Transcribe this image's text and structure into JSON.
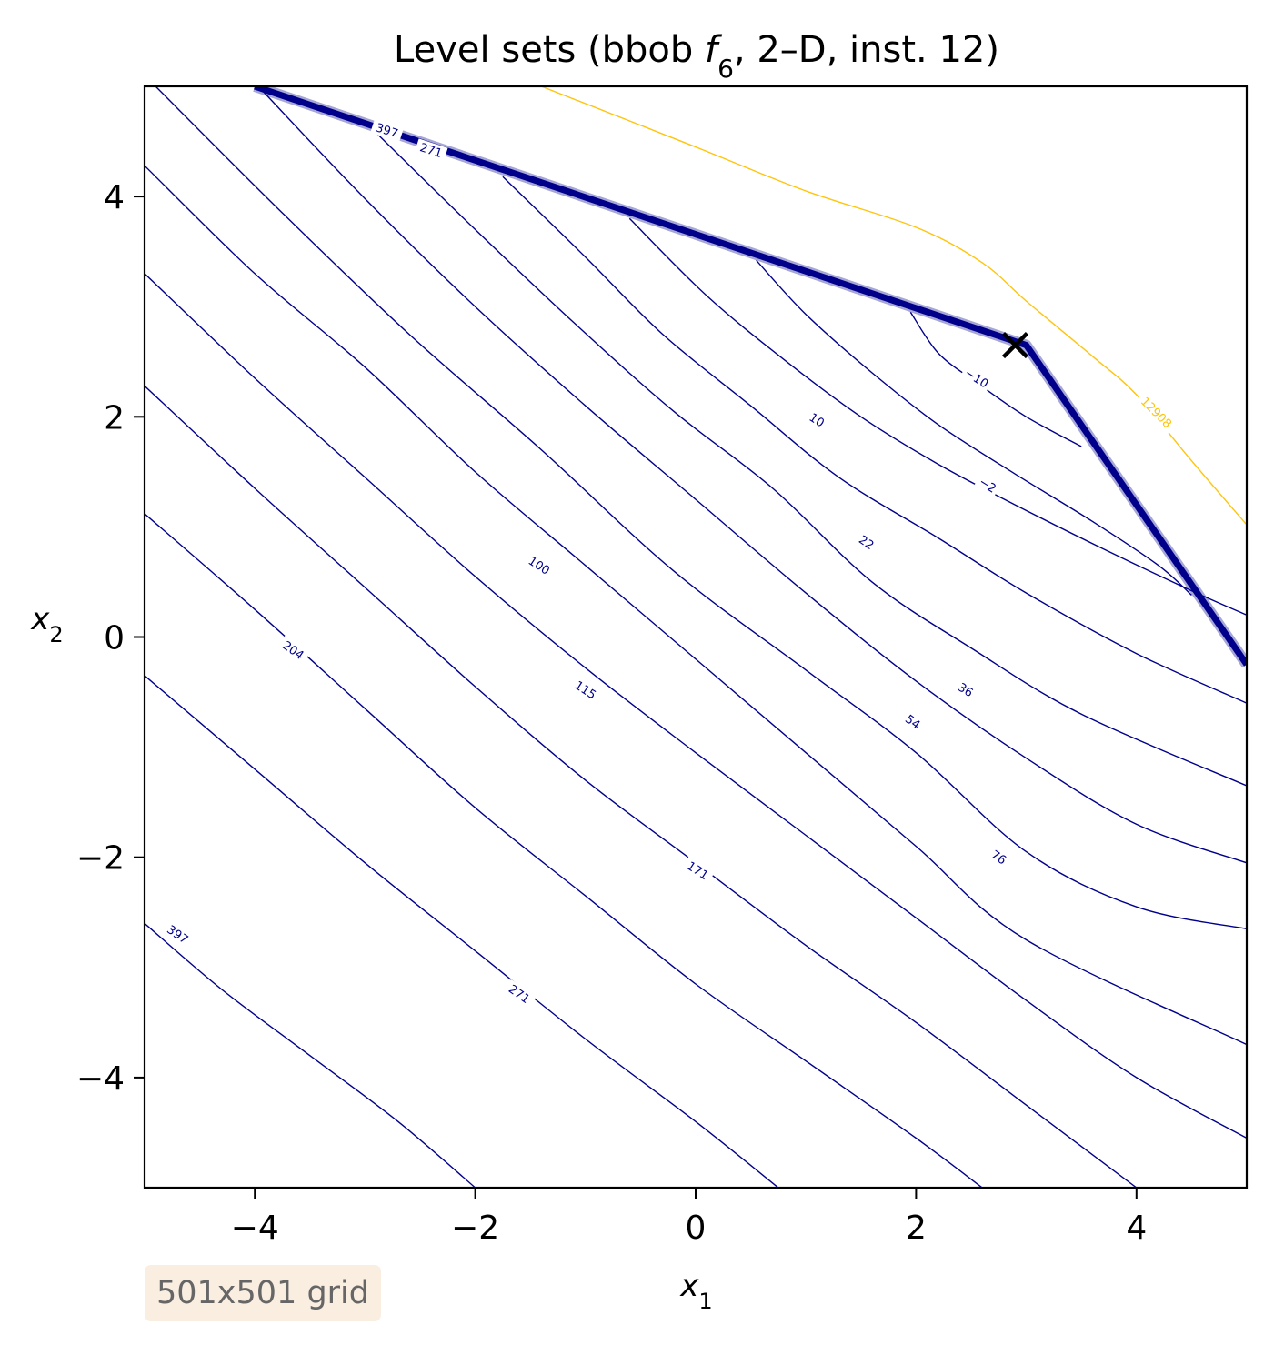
{
  "chart_data": {
    "type": "contour",
    "title": "Level sets (bbob f6, 2–D, inst. 12)",
    "title_parts": {
      "prefix": "Level sets (bbob ",
      "func_letter": "f",
      "func_sub": "6",
      "suffix": ", 2–D, inst. 12)"
    },
    "xlabel": {
      "base": "x",
      "sub": "1"
    },
    "ylabel": {
      "base": "x",
      "sub": "2"
    },
    "xlim": [
      -5,
      5
    ],
    "ylim": [
      -5,
      5
    ],
    "xticks": [
      {
        "value": -4,
        "label": "−4"
      },
      {
        "value": -2,
        "label": "−2"
      },
      {
        "value": 0,
        "label": "0"
      },
      {
        "value": 2,
        "label": "2"
      },
      {
        "value": 4,
        "label": "4"
      }
    ],
    "yticks": [
      {
        "value": -4,
        "label": "−4"
      },
      {
        "value": -2,
        "label": "−2"
      },
      {
        "value": 0,
        "label": "0"
      },
      {
        "value": 2,
        "label": "2"
      },
      {
        "value": 4,
        "label": "4"
      }
    ],
    "grid": false,
    "optimum": {
      "x": 2.9,
      "y": 2.65,
      "marker": "x"
    },
    "ridge_polyline": [
      [
        -4.0,
        5.0
      ],
      [
        3.0,
        2.65
      ],
      [
        5.0,
        -0.25
      ]
    ],
    "contour_levels": [
      -10,
      -2,
      10,
      22,
      36,
      54,
      76,
      100,
      115,
      171,
      204,
      271,
      397,
      12908
    ],
    "level_colors": {
      "low": "#00008b",
      "high": "#ffc40c"
    },
    "contours": [
      {
        "level": -10,
        "label": "−10",
        "label_at": [
          2.55,
          2.35
        ],
        "label_angle": 33,
        "color": "#00008b",
        "points": [
          [
            1.95,
            2.95
          ],
          [
            2.2,
            2.58
          ],
          [
            2.55,
            2.31
          ],
          [
            3.0,
            2.0
          ],
          [
            3.5,
            1.73
          ]
        ]
      },
      {
        "level": 10,
        "label": "10",
        "label_at": [
          1.1,
          1.97
        ],
        "label_angle": 33,
        "color": "#00008b",
        "points": [
          [
            0.55,
            3.42
          ],
          [
            1.0,
            2.93
          ],
          [
            1.6,
            2.4
          ],
          [
            2.2,
            1.93
          ],
          [
            2.9,
            1.48
          ],
          [
            3.6,
            1.05
          ],
          [
            4.2,
            0.65
          ],
          [
            4.5,
            0.38
          ]
        ]
      },
      {
        "level": -2,
        "label": "−2",
        "label_at": [
          2.65,
          1.38
        ],
        "label_angle": 32,
        "color": "#00008b",
        "points": [
          [
            -0.6,
            3.8
          ],
          [
            0.1,
            3.1
          ],
          [
            0.8,
            2.52
          ],
          [
            1.5,
            2.0
          ],
          [
            2.2,
            1.57
          ],
          [
            2.9,
            1.2
          ],
          [
            3.7,
            0.8
          ],
          [
            4.5,
            0.42
          ],
          [
            5.0,
            0.2
          ]
        ]
      },
      {
        "level": 22,
        "label": "22",
        "label_at": [
          1.55,
          0.86
        ],
        "label_angle": 34,
        "color": "#00008b",
        "points": [
          [
            -1.75,
            4.18
          ],
          [
            -1.0,
            3.45
          ],
          [
            -0.3,
            2.75
          ],
          [
            0.5,
            2.1
          ],
          [
            1.3,
            1.45
          ],
          [
            2.2,
            0.9
          ],
          [
            3.0,
            0.4
          ],
          [
            4.0,
            -0.15
          ],
          [
            5.0,
            -0.6
          ]
        ]
      },
      {
        "level": 36,
        "label": "36",
        "label_at": [
          2.45,
          -0.48
        ],
        "label_angle": 32,
        "color": "#00008b",
        "points": [
          [
            -2.9,
            4.58
          ],
          [
            -2.0,
            3.7
          ],
          [
            -1.1,
            2.85
          ],
          [
            -0.2,
            2.05
          ],
          [
            0.7,
            1.35
          ],
          [
            1.6,
            0.5
          ],
          [
            2.5,
            -0.1
          ],
          [
            3.5,
            -0.7
          ],
          [
            5.0,
            -1.35
          ]
        ]
      },
      {
        "level": 54,
        "label": "54",
        "label_at": [
          1.97,
          -0.77
        ],
        "label_angle": 36,
        "color": "#00008b",
        "points": [
          [
            -3.95,
            4.98
          ],
          [
            -3.0,
            3.98
          ],
          [
            -2.0,
            3.0
          ],
          [
            -1.0,
            2.1
          ],
          [
            0.0,
            1.25
          ],
          [
            1.0,
            0.4
          ],
          [
            2.0,
            -0.4
          ],
          [
            3.0,
            -1.1
          ],
          [
            4.0,
            -1.7
          ],
          [
            5.0,
            -2.05
          ]
        ]
      },
      {
        "level": 76,
        "label": "76",
        "label_at": [
          2.75,
          -2.0
        ],
        "label_angle": 33,
        "color": "#00008b",
        "points": [
          [
            -4.9,
            5.0
          ],
          [
            -3.8,
            3.9
          ],
          [
            -2.6,
            2.75
          ],
          [
            -1.4,
            1.7
          ],
          [
            -0.2,
            0.6
          ],
          [
            1.0,
            -0.3
          ],
          [
            2.0,
            -1.05
          ],
          [
            3.0,
            -1.95
          ],
          [
            4.0,
            -2.45
          ],
          [
            5.0,
            -2.65
          ]
        ]
      },
      {
        "level": 100,
        "label": "100",
        "label_at": [
          -1.42,
          0.65
        ],
        "label_angle": 33,
        "color": "#00008b",
        "points": [
          [
            -5.0,
            4.28
          ],
          [
            -4.0,
            3.3
          ],
          [
            -3.0,
            2.45
          ],
          [
            -2.0,
            1.5
          ],
          [
            -1.0,
            0.65
          ],
          [
            0.0,
            -0.2
          ],
          [
            1.0,
            -1.05
          ],
          [
            2.0,
            -1.9
          ],
          [
            3.0,
            -2.75
          ],
          [
            5.0,
            -3.7
          ]
        ]
      },
      {
        "level": 115,
        "label": "115",
        "label_at": [
          -1.0,
          -0.48
        ],
        "label_angle": 33,
        "color": "#00008b",
        "points": [
          [
            -5.0,
            3.3
          ],
          [
            -4.0,
            2.35
          ],
          [
            -3.0,
            1.45
          ],
          [
            -2.0,
            0.55
          ],
          [
            -1.0,
            -0.28
          ],
          [
            0.0,
            -1.05
          ],
          [
            1.0,
            -1.8
          ],
          [
            2.0,
            -2.55
          ],
          [
            3.0,
            -3.3
          ],
          [
            4.0,
            -4.0
          ],
          [
            5.0,
            -4.55
          ]
        ]
      },
      {
        "level": 171,
        "label": "171",
        "label_at": [
          0.02,
          -2.12
        ],
        "label_angle": 33,
        "color": "#00008b",
        "points": [
          [
            -5.0,
            2.28
          ],
          [
            -4.0,
            1.35
          ],
          [
            -3.0,
            0.45
          ],
          [
            -2.0,
            -0.45
          ],
          [
            -1.0,
            -1.3
          ],
          [
            0.0,
            -2.05
          ],
          [
            1.0,
            -2.8
          ],
          [
            2.0,
            -3.5
          ],
          [
            3.0,
            -4.25
          ],
          [
            4.0,
            -5.0
          ]
        ]
      },
      {
        "level": 204,
        "label": "204",
        "label_at": [
          -3.65,
          -0.12
        ],
        "label_angle": 35,
        "color": "#00008b",
        "points": [
          [
            -5.0,
            1.12
          ],
          [
            -4.0,
            0.25
          ],
          [
            -3.0,
            -0.65
          ],
          [
            -2.0,
            -1.55
          ],
          [
            -1.0,
            -2.35
          ],
          [
            0.0,
            -3.15
          ],
          [
            1.0,
            -3.85
          ],
          [
            2.0,
            -4.55
          ],
          [
            2.6,
            -5.0
          ]
        ]
      },
      {
        "level": 271,
        "label": "271",
        "label_at": [
          -1.6,
          -3.24
        ],
        "label_angle": 35,
        "color": "#00008b",
        "points": [
          [
            -5.0,
            -0.35
          ],
          [
            -4.0,
            -1.2
          ],
          [
            -3.0,
            -2.05
          ],
          [
            -2.0,
            -2.85
          ],
          [
            -1.0,
            -3.65
          ],
          [
            0.0,
            -4.4
          ],
          [
            0.75,
            -5.0
          ]
        ]
      },
      {
        "level": 397,
        "label": "397",
        "label_at": [
          -4.7,
          -2.7
        ],
        "label_angle": 35,
        "color": "#00008b",
        "points": [
          [
            -5.0,
            -2.6
          ],
          [
            -4.3,
            -3.2
          ],
          [
            -3.5,
            -3.8
          ],
          [
            -2.7,
            -4.4
          ],
          [
            -2.0,
            -5.0
          ]
        ]
      },
      {
        "level": 12908,
        "label": "12908",
        "label_at": [
          4.18,
          2.04
        ],
        "label_angle": 45,
        "color": "#ffc40c",
        "points": [
          [
            -1.4,
            5.0
          ],
          [
            0.0,
            4.45
          ],
          [
            1.0,
            4.05
          ],
          [
            2.0,
            3.72
          ],
          [
            2.6,
            3.4
          ],
          [
            3.0,
            3.05
          ],
          [
            3.6,
            2.55
          ],
          [
            4.0,
            2.2
          ],
          [
            4.5,
            1.6
          ],
          [
            5.0,
            1.02
          ]
        ]
      }
    ],
    "ridge_labels": [
      {
        "label": "397",
        "at": [
          -2.8,
          4.6
        ],
        "angle": 18
      },
      {
        "label": "271",
        "at": [
          -2.4,
          4.42
        ],
        "angle": 18
      }
    ]
  },
  "annotation": {
    "grid_note": "501x501 grid"
  }
}
